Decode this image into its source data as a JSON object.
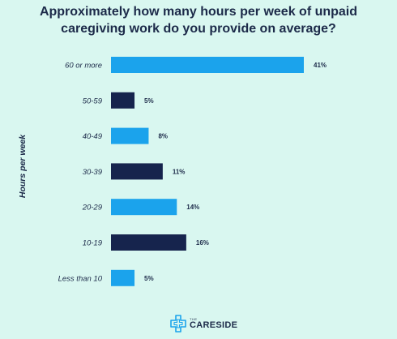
{
  "chart_data": {
    "type": "bar",
    "orientation": "horizontal",
    "title_lines": [
      "Approximately how many hours per week of unpaid",
      "caregiving work do you provide on average?"
    ],
    "ylabel": "Hours per week",
    "xlabel": "",
    "xlim": [
      0,
      41
    ],
    "grid": false,
    "legend": "none",
    "categories": [
      "60 or more",
      "50-59",
      "40-49",
      "30-39",
      "20-29",
      "10-19",
      "Less than 10"
    ],
    "values": [
      41,
      5,
      8,
      11,
      14,
      16,
      5
    ],
    "value_labels": [
      "41%",
      "5%",
      "8%",
      "11%",
      "14%",
      "16%",
      "5%"
    ],
    "bar_colors": [
      "#1ba3ec",
      "#16244d",
      "#1ba3ec",
      "#16244d",
      "#1ba3ec",
      "#16244d",
      "#1ba3ec"
    ]
  },
  "branding": {
    "logo_small_text": "THE",
    "logo_text": "CARESIDE",
    "logo_color": "#1ba3ec",
    "icon": "careside-cross-icon"
  },
  "colors": {
    "background": "#d9f7f0",
    "text": "#1c2a49",
    "accent_light": "#1ba3ec",
    "accent_dark": "#16244d"
  }
}
